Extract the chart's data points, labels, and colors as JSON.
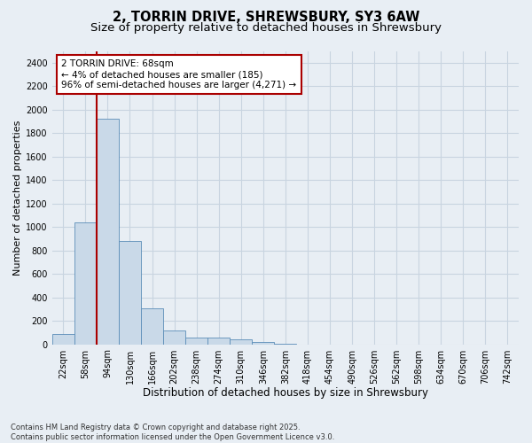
{
  "title_line1": "2, TORRIN DRIVE, SHREWSBURY, SY3 6AW",
  "title_line2": "Size of property relative to detached houses in Shrewsbury",
  "xlabel": "Distribution of detached houses by size in Shrewsbury",
  "ylabel": "Number of detached properties",
  "annotation_line1": "2 TORRIN DRIVE: 68sqm",
  "annotation_line2": "← 4% of detached houses are smaller (185)",
  "annotation_line3": "96% of semi-detached houses are larger (4,271) →",
  "bin_labels": [
    "22sqm",
    "58sqm",
    "94sqm",
    "130sqm",
    "166sqm",
    "202sqm",
    "238sqm",
    "274sqm",
    "310sqm",
    "346sqm",
    "382sqm",
    "418sqm",
    "454sqm",
    "490sqm",
    "526sqm",
    "562sqm",
    "598sqm",
    "634sqm",
    "670sqm",
    "706sqm",
    "742sqm"
  ],
  "bar_values": [
    90,
    1040,
    1920,
    880,
    310,
    120,
    60,
    55,
    40,
    20,
    5,
    0,
    0,
    0,
    0,
    0,
    0,
    0,
    0,
    0,
    0
  ],
  "bar_color": "#c9d9e8",
  "bar_edgecolor": "#5b8db8",
  "ylim": [
    0,
    2500
  ],
  "yticks": [
    0,
    200,
    400,
    600,
    800,
    1000,
    1200,
    1400,
    1600,
    1800,
    2000,
    2200,
    2400
  ],
  "bg_color": "#e8eef4",
  "plot_bg_color": "#e8eef4",
  "grid_color": "#c8d4e0",
  "annotation_box_facecolor": "#ffffff",
  "annotation_box_edgecolor": "#aa0000",
  "red_line_color": "#aa0000",
  "footer_line1": "Contains HM Land Registry data © Crown copyright and database right 2025.",
  "footer_line2": "Contains public sector information licensed under the Open Government Licence v3.0.",
  "title_fontsize": 10.5,
  "subtitle_fontsize": 9.5,
  "tick_fontsize": 7,
  "xlabel_fontsize": 8.5,
  "ylabel_fontsize": 8,
  "annotation_fontsize": 7.5,
  "footer_fontsize": 6.0
}
